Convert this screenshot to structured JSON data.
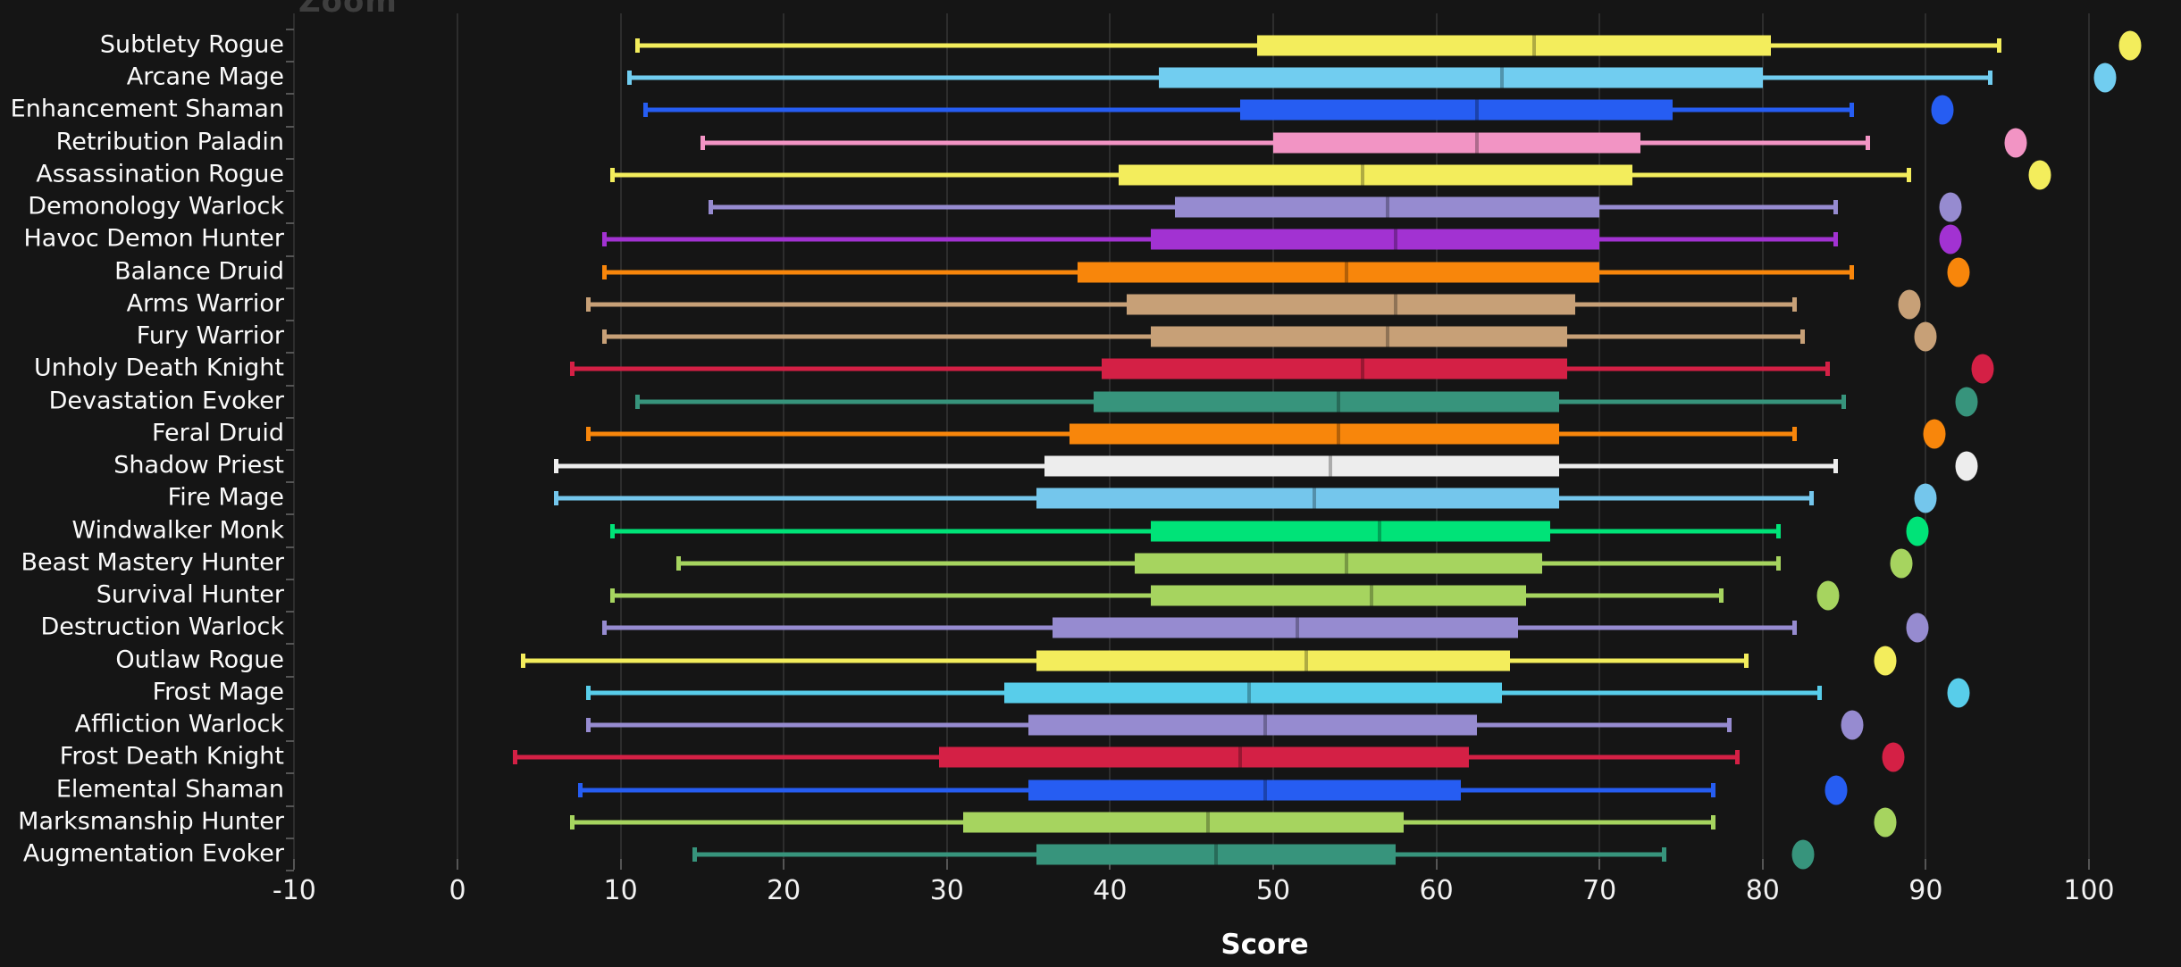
{
  "title": "Zoom",
  "chart_data": {
    "type": "boxplot",
    "orientation": "horizontal",
    "title": "Zoom",
    "xlabel": "Score",
    "xlim": [
      -10,
      105.5
    ],
    "x_ticks": [
      -10,
      0,
      10,
      20,
      30,
      40,
      50,
      60,
      70,
      80,
      90,
      100
    ],
    "grid": true,
    "legend": "none",
    "background_color": "#151515",
    "gridline_color": "#2d2d2d",
    "tick_color": "#555555",
    "label_color": "#fafafa",
    "series": [
      {
        "label": "Subtlety Rogue",
        "color": "#f3ed5c",
        "low": 11,
        "q1": 49,
        "median": 66,
        "q3": 80.5,
        "high": 94.5,
        "outliers": [
          102.5
        ]
      },
      {
        "label": "Arcane Mage",
        "color": "#71cdf0",
        "low": 10.5,
        "q1": 43,
        "median": 64,
        "q3": 80,
        "high": 94,
        "outliers": [
          101
        ]
      },
      {
        "label": "Enhancement Shaman",
        "color": "#265df2",
        "low": 11.5,
        "q1": 48,
        "median": 62.5,
        "q3": 74.5,
        "high": 85.5,
        "outliers": [
          91
        ]
      },
      {
        "label": "Retribution Paladin",
        "color": "#f294c4",
        "low": 15,
        "q1": 50,
        "median": 62.5,
        "q3": 72.5,
        "high": 86.5,
        "outliers": [
          95.5
        ]
      },
      {
        "label": "Assassination Rogue",
        "color": "#f3ed5c",
        "low": 9.5,
        "q1": 40.5,
        "median": 55.5,
        "q3": 72,
        "high": 89,
        "outliers": [
          97
        ]
      },
      {
        "label": "Demonology Warlock",
        "color": "#968bd0",
        "low": 15.5,
        "q1": 44,
        "median": 57,
        "q3": 70,
        "high": 84.5,
        "outliers": [
          91.5
        ]
      },
      {
        "label": "Havoc Demon Hunter",
        "color": "#a232d2",
        "low": 9,
        "q1": 42.5,
        "median": 57.5,
        "q3": 70,
        "high": 84.5,
        "outliers": [
          91.5
        ]
      },
      {
        "label": "Balance Druid",
        "color": "#f8860b",
        "low": 9,
        "q1": 38,
        "median": 54.5,
        "q3": 70,
        "high": 85.5,
        "outliers": [
          92
        ]
      },
      {
        "label": "Arms Warrior",
        "color": "#c7a077",
        "low": 8,
        "q1": 41,
        "median": 57.5,
        "q3": 68.5,
        "high": 82,
        "outliers": [
          89
        ]
      },
      {
        "label": "Fury Warrior",
        "color": "#c7a077",
        "low": 9,
        "q1": 42.5,
        "median": 57,
        "q3": 68,
        "high": 82.5,
        "outliers": [
          90
        ]
      },
      {
        "label": "Unholy Death Knight",
        "color": "#d42045",
        "low": 7,
        "q1": 39.5,
        "median": 55.5,
        "q3": 68,
        "high": 84,
        "outliers": [
          93.5
        ]
      },
      {
        "label": "Devastation Evoker",
        "color": "#37947c",
        "low": 11,
        "q1": 39,
        "median": 54,
        "q3": 67.5,
        "high": 85,
        "outliers": [
          92.5
        ]
      },
      {
        "label": "Feral Druid",
        "color": "#f8860b",
        "low": 8,
        "q1": 37.5,
        "median": 54,
        "q3": 67.5,
        "high": 82,
        "outliers": [
          90.5
        ]
      },
      {
        "label": "Shadow Priest",
        "color": "#ededed",
        "low": 6,
        "q1": 36,
        "median": 53.5,
        "q3": 67.5,
        "high": 84.5,
        "outliers": [
          92.5
        ]
      },
      {
        "label": "Fire Mage",
        "color": "#74c6ec",
        "low": 6,
        "q1": 35.5,
        "median": 52.5,
        "q3": 67.5,
        "high": 83,
        "outliers": [
          90
        ]
      },
      {
        "label": "Windwalker Monk",
        "color": "#00e378",
        "low": 9.5,
        "q1": 42.5,
        "median": 56.5,
        "q3": 67,
        "high": 81,
        "outliers": [
          89.5
        ]
      },
      {
        "label": "Beast Mastery Hunter",
        "color": "#a6d45f",
        "low": 13.5,
        "q1": 41.5,
        "median": 54.5,
        "q3": 66.5,
        "high": 81,
        "outliers": [
          88.5
        ]
      },
      {
        "label": "Survival Hunter",
        "color": "#a6d45f",
        "low": 9.5,
        "q1": 42.5,
        "median": 56,
        "q3": 65.5,
        "high": 77.5,
        "outliers": [
          84
        ]
      },
      {
        "label": "Destruction Warlock",
        "color": "#968bd0",
        "low": 9,
        "q1": 36.5,
        "median": 51.5,
        "q3": 65,
        "high": 82,
        "outliers": [
          89.5
        ]
      },
      {
        "label": "Outlaw Rogue",
        "color": "#f3ed5c",
        "low": 4,
        "q1": 35.5,
        "median": 52,
        "q3": 64.5,
        "high": 79,
        "outliers": [
          87.5
        ]
      },
      {
        "label": "Frost Mage",
        "color": "#58cdea",
        "low": 8,
        "q1": 33.5,
        "median": 48.5,
        "q3": 64,
        "high": 83.5,
        "outliers": [
          92
        ]
      },
      {
        "label": "Affliction Warlock",
        "color": "#968bd0",
        "low": 8,
        "q1": 35,
        "median": 49.5,
        "q3": 62.5,
        "high": 78,
        "outliers": [
          85.5
        ]
      },
      {
        "label": "Frost Death Knight",
        "color": "#d42045",
        "low": 3.5,
        "q1": 29.5,
        "median": 48,
        "q3": 62,
        "high": 78.5,
        "outliers": [
          88
        ]
      },
      {
        "label": "Elemental Shaman",
        "color": "#265df2",
        "low": 7.5,
        "q1": 35,
        "median": 49.5,
        "q3": 61.5,
        "high": 77,
        "outliers": [
          84.5
        ]
      },
      {
        "label": "Marksmanship Hunter",
        "color": "#a6d45f",
        "low": 7,
        "q1": 31,
        "median": 46,
        "q3": 58,
        "high": 77,
        "outliers": [
          87.5
        ]
      },
      {
        "label": "Augmentation Evoker",
        "color": "#37947c",
        "low": 14.5,
        "q1": 35.5,
        "median": 46.5,
        "q3": 57.5,
        "high": 74,
        "outliers": [
          82.5
        ]
      }
    ]
  }
}
